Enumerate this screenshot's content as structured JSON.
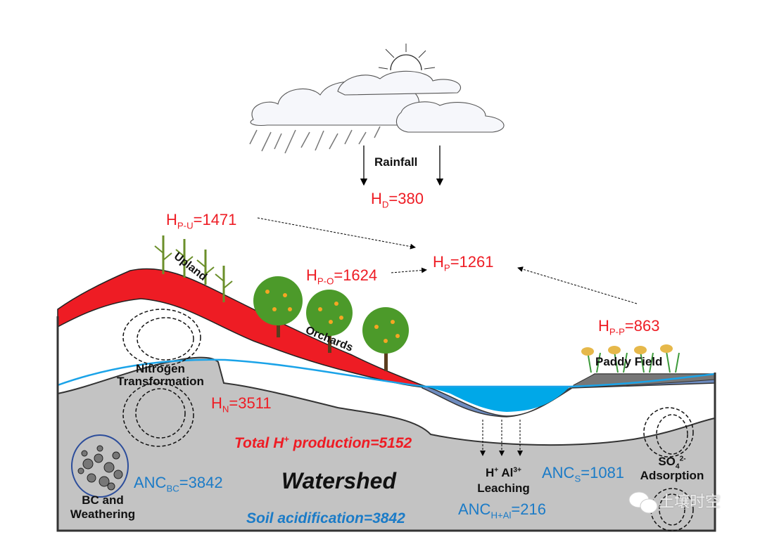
{
  "rainfall": {
    "label": "Rainfall"
  },
  "fluxes": {
    "hd": {
      "sym": "H",
      "sub": "D",
      "val": "=380"
    },
    "hpu": {
      "sym": "H",
      "sub": "P-U",
      "val": "=1471"
    },
    "hpo": {
      "sym": "H",
      "sub": "P-O",
      "val": "=1624"
    },
    "hp": {
      "sym": "H",
      "sub": "P",
      "val": "=1261"
    },
    "hpp": {
      "sym": "H",
      "sub": "P-P",
      "val": "=863"
    },
    "hn": {
      "sym": "H",
      "sub": "N",
      "val": "=3511"
    },
    "ancbc": {
      "sym": "ANC",
      "sub": "BC",
      "val": "=3842"
    },
    "ancs": {
      "sym": "ANC",
      "sub": "S",
      "val": "=1081"
    },
    "anchal": {
      "sym": "ANC",
      "sub": "H+Al",
      "val": "=216"
    }
  },
  "land_uses": {
    "upland": "Upland",
    "orchards": "Orchards",
    "paddy": "Paddy Field"
  },
  "processes": {
    "nitrogen_1": "Nitrogen",
    "nitrogen_2": "Transformation",
    "bc_1": "BC and",
    "bc_2": "Weathering",
    "leach_h": "H",
    "leach_h_sup": "+",
    "leach_al": " Al",
    "leach_al_sup": "3+",
    "leach_2": "Leaching",
    "so4": "SO",
    "so4_sub": "4",
    "so4_sup": "2-",
    "adsorption": "Adsorption"
  },
  "totals": {
    "total_pre": "Total H",
    "total_sup": "+",
    "total_post": " production=5152",
    "watershed": "Watershed",
    "soil_acid": "Soil acidification=3842"
  },
  "watermark": {
    "text": "土壤时空",
    "icon": "wechat-icon"
  },
  "colors": {
    "red": "#ee1c24",
    "blue": "#1b7bc7",
    "soil": "#c3c3c3",
    "water": "#00a8e8"
  }
}
